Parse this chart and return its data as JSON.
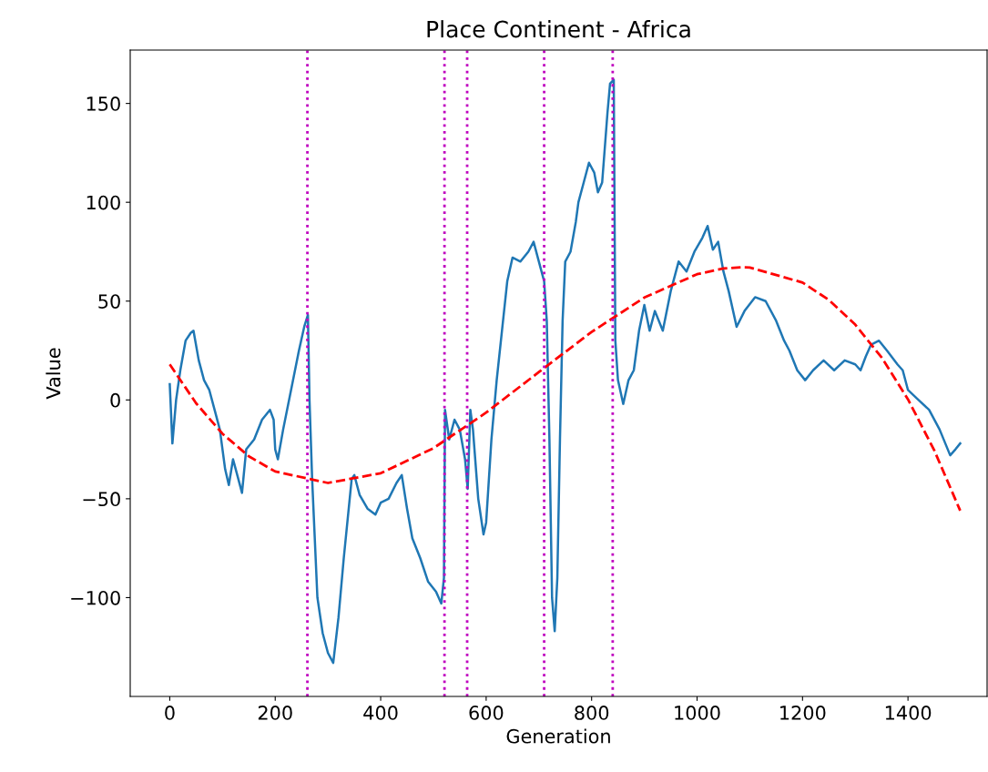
{
  "chart_data": {
    "type": "line",
    "title": "Place Continent - Africa",
    "xlabel": "Generation",
    "ylabel": "Value",
    "xlim": [
      -75,
      1550
    ],
    "xticks": [
      0,
      200,
      400,
      600,
      800,
      1000,
      1200,
      1400
    ],
    "ylim": [
      -150,
      177
    ],
    "yticks": [
      {
        "value": -100,
        "label": "−100"
      },
      {
        "value": -50,
        "label": "−50"
      },
      0,
      50,
      100,
      150
    ],
    "grid": false,
    "legend": false,
    "series": [
      {
        "color": "#1f77b4",
        "line_style": "solid",
        "x": [
          0,
          5,
          12,
          20,
          30,
          40,
          45,
          55,
          65,
          75,
          85,
          95,
          105,
          112,
          120,
          130,
          137,
          145,
          160,
          175,
          190,
          197,
          200,
          205,
          215,
          230,
          245,
          255,
          262,
          265,
          270,
          280,
          290,
          300,
          310,
          320,
          330,
          345,
          350,
          360,
          375,
          390,
          400,
          415,
          430,
          440,
          450,
          460,
          475,
          490,
          505,
          515,
          520,
          522,
          530,
          540,
          550,
          560,
          565,
          570,
          575,
          585,
          595,
          600,
          610,
          620,
          630,
          640,
          650,
          665,
          680,
          690,
          700,
          710,
          715,
          720,
          725,
          730,
          735,
          740,
          745,
          750,
          760,
          770,
          775,
          785,
          795,
          805,
          812,
          820,
          830,
          835,
          842,
          845,
          850,
          860,
          870,
          880,
          890,
          900,
          910,
          920,
          935,
          950,
          965,
          980,
          995,
          1010,
          1020,
          1030,
          1040,
          1050,
          1060,
          1075,
          1090,
          1110,
          1130,
          1150,
          1165,
          1175,
          1190,
          1205,
          1220,
          1240,
          1260,
          1280,
          1300,
          1310,
          1320,
          1330,
          1345,
          1360,
          1380,
          1390,
          1400,
          1420,
          1440,
          1460,
          1480,
          1490,
          1499
        ],
        "values": [
          8,
          -22,
          0,
          15,
          30,
          34,
          35,
          20,
          10,
          5,
          -5,
          -15,
          -35,
          -43,
          -30,
          -40,
          -47,
          -25,
          -20,
          -10,
          -5,
          -10,
          -25,
          -30,
          -15,
          5,
          25,
          37,
          43,
          0,
          -40,
          -100,
          -118,
          -128,
          -133,
          -110,
          -80,
          -40,
          -38,
          -48,
          -55,
          -58,
          -52,
          -50,
          -42,
          -38,
          -55,
          -70,
          -80,
          -92,
          -97,
          -103,
          -90,
          -5,
          -20,
          -10,
          -15,
          -30,
          -45,
          -5,
          -15,
          -50,
          -68,
          -62,
          -20,
          10,
          35,
          60,
          72,
          70,
          75,
          80,
          70,
          60,
          40,
          -20,
          -100,
          -117,
          -90,
          -20,
          40,
          70,
          75,
          90,
          100,
          110,
          120,
          115,
          105,
          110,
          145,
          160,
          162,
          30,
          10,
          -2,
          10,
          15,
          35,
          48,
          35,
          45,
          35,
          55,
          70,
          65,
          75,
          82,
          88,
          76,
          80,
          65,
          55,
          37,
          45,
          52,
          50,
          40,
          30,
          25,
          15,
          10,
          15,
          20,
          15,
          20,
          18,
          15,
          22,
          28,
          30,
          25,
          18,
          15,
          5,
          0,
          -5,
          -15,
          -28,
          -25,
          -22
        ]
      },
      {
        "color": "#ff0000",
        "line_style": "dashed",
        "x": [
          0,
          50,
          100,
          150,
          200,
          300,
          400,
          500,
          600,
          700,
          800,
          900,
          1000,
          1050,
          1085,
          1100,
          1200,
          1250,
          1300,
          1350,
          1400,
          1450,
          1499
        ],
        "values": [
          18,
          -1.7,
          -17.1,
          -28.5,
          -36.2,
          -42,
          -37.1,
          -24.4,
          -6.4,
          14.1,
          34.4,
          51.8,
          63.6,
          66.5,
          67.1,
          67.0,
          59.4,
          50.6,
          38.1,
          21.5,
          0.3,
          -25.6,
          -56
        ]
      }
    ],
    "ref_lines": [
      {
        "axis": "x",
        "value": 261,
        "color": "#bf00bf",
        "line_style": "dotted"
      },
      {
        "axis": "x",
        "value": 521,
        "color": "#bf00bf",
        "line_style": "dotted"
      },
      {
        "axis": "x",
        "value": 564,
        "color": "#bf00bf",
        "line_style": "dotted"
      },
      {
        "axis": "x",
        "value": 710,
        "color": "#bf00bf",
        "line_style": "dotted"
      },
      {
        "axis": "x",
        "value": 840,
        "color": "#bf00bf",
        "line_style": "dotted"
      }
    ]
  }
}
